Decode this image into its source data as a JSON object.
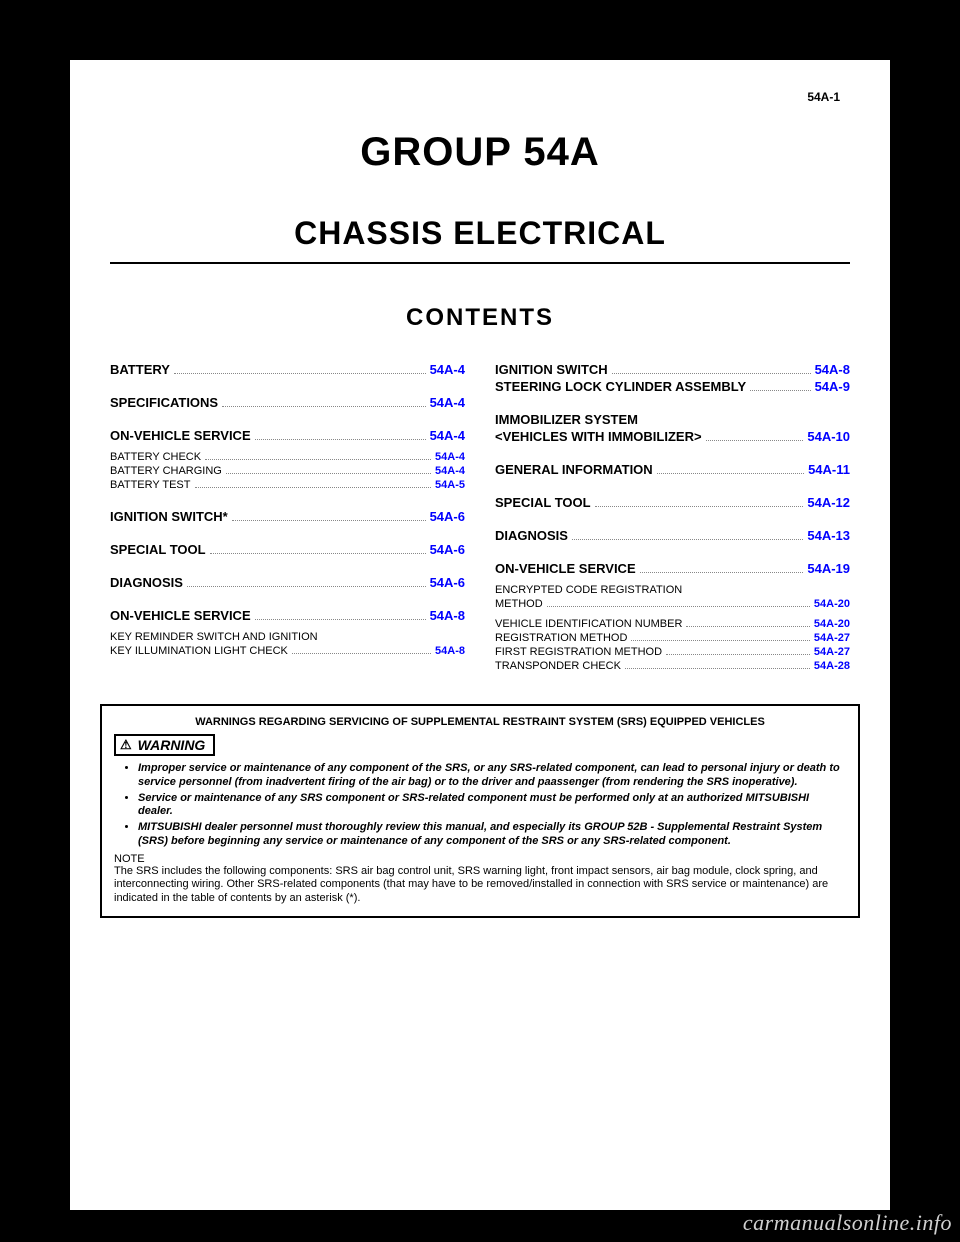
{
  "meta": {
    "page_number": "54A-1",
    "group_title": "GROUP 54A",
    "chapter_title": "CHASSIS ELECTRICAL",
    "contents_label": "CONTENTS",
    "watermark": "carmanualsonline.info"
  },
  "colors": {
    "link": "#0000ff",
    "text": "#000000",
    "page_bg": "#ffffff",
    "body_bg": "#000000"
  },
  "toc_left": [
    {
      "level": "h1",
      "label": "BATTERY",
      "page": "54A-4"
    },
    {
      "level": "spacer-md"
    },
    {
      "level": "h1",
      "label": "SPECIFICATIONS",
      "page": "54A-4"
    },
    {
      "level": "spacer-md"
    },
    {
      "level": "h1",
      "label": "ON-VEHICLE SERVICE",
      "page": "54A-4"
    },
    {
      "level": "spacer-sm"
    },
    {
      "level": "h2",
      "label": "BATTERY CHECK",
      "page": "54A-4"
    },
    {
      "level": "h2",
      "label": "BATTERY CHARGING",
      "page": "54A-4"
    },
    {
      "level": "h2",
      "label": "BATTERY TEST",
      "page": "54A-5"
    },
    {
      "level": "spacer-md"
    },
    {
      "level": "h1",
      "label": "IGNITION SWITCH*",
      "page": "54A-6"
    },
    {
      "level": "spacer-md"
    },
    {
      "level": "h1",
      "label": "SPECIAL TOOL",
      "page": "54A-6"
    },
    {
      "level": "spacer-md"
    },
    {
      "level": "h1",
      "label": "DIAGNOSIS",
      "page": "54A-6"
    },
    {
      "level": "spacer-md"
    },
    {
      "level": "h1",
      "label": "ON-VEHICLE SERVICE",
      "page": "54A-8"
    },
    {
      "level": "spacer-sm"
    },
    {
      "level": "h2",
      "label": "KEY REMINDER SWITCH AND IGNITION",
      "page": ""
    },
    {
      "level": "h2",
      "label": "KEY ILLUMINATION LIGHT CHECK",
      "page": "54A-8"
    }
  ],
  "toc_right": [
    {
      "level": "h1",
      "label": "IGNITION SWITCH",
      "page": "54A-8"
    },
    {
      "level": "h1",
      "label": "STEERING LOCK CYLINDER ASSEMBLY",
      "page": "54A-9"
    },
    {
      "level": "spacer-md"
    },
    {
      "level": "h1",
      "label": "IMMOBILIZER SYSTEM",
      "page": ""
    },
    {
      "level": "h1",
      "label": "<VEHICLES WITH IMMOBILIZER>",
      "page": "54A-10"
    },
    {
      "level": "spacer-md"
    },
    {
      "level": "h1",
      "label": "GENERAL INFORMATION",
      "page": "54A-11"
    },
    {
      "level": "spacer-md"
    },
    {
      "level": "h1",
      "label": "SPECIAL TOOL",
      "page": "54A-12"
    },
    {
      "level": "spacer-md"
    },
    {
      "level": "h1",
      "label": "DIAGNOSIS",
      "page": "54A-13"
    },
    {
      "level": "spacer-md"
    },
    {
      "level": "h1",
      "label": "ON-VEHICLE SERVICE",
      "page": "54A-19"
    },
    {
      "level": "spacer-sm"
    },
    {
      "level": "h2",
      "label": "ENCRYPTED CODE REGISTRATION",
      "page": ""
    },
    {
      "level": "h2",
      "label": "METHOD",
      "page": "54A-20"
    },
    {
      "level": "spacer-sm"
    },
    {
      "level": "h2",
      "label": "VEHICLE IDENTIFICATION NUMBER",
      "page": "54A-20"
    },
    {
      "level": "h2",
      "label": "REGISTRATION METHOD",
      "page": "54A-27"
    },
    {
      "level": "h2",
      "label": "FIRST REGISTRATION METHOD",
      "page": "54A-27"
    },
    {
      "level": "h2",
      "label": "TRANSPONDER CHECK",
      "page": "54A-28"
    }
  ],
  "warning": {
    "header": "WARNINGS REGARDING SERVICING OF SUPPLEMENTAL RESTRAINT SYSTEM (SRS) EQUIPPED VEHICLES",
    "tag": "WARNING",
    "bullets": [
      "Improper service or maintenance of any component of the SRS, or any SRS-related component, can lead to personal injury or death to service personnel (from inadvertent firing of the air bag) or to the driver and paassenger (from rendering the SRS inoperative).",
      "Service or maintenance of any SRS component or SRS-related component must be performed only at an authorized MITSUBISHI dealer.",
      "MITSUBISHI dealer personnel must thoroughly review this manual, and especially its GROUP 52B - Supplemental Restraint System (SRS) before beginning any service or maintenance of any component of the SRS or any SRS-related component."
    ],
    "note_label": "NOTE",
    "note_text": "The SRS includes the following components: SRS air bag control unit, SRS warning light, front impact sensors, air bag module, clock spring, and interconnecting wiring. Other SRS-related components (that may have to be removed/installed in connection with SRS service or maintenance) are indicated in the table of contents by an asterisk (*)."
  }
}
